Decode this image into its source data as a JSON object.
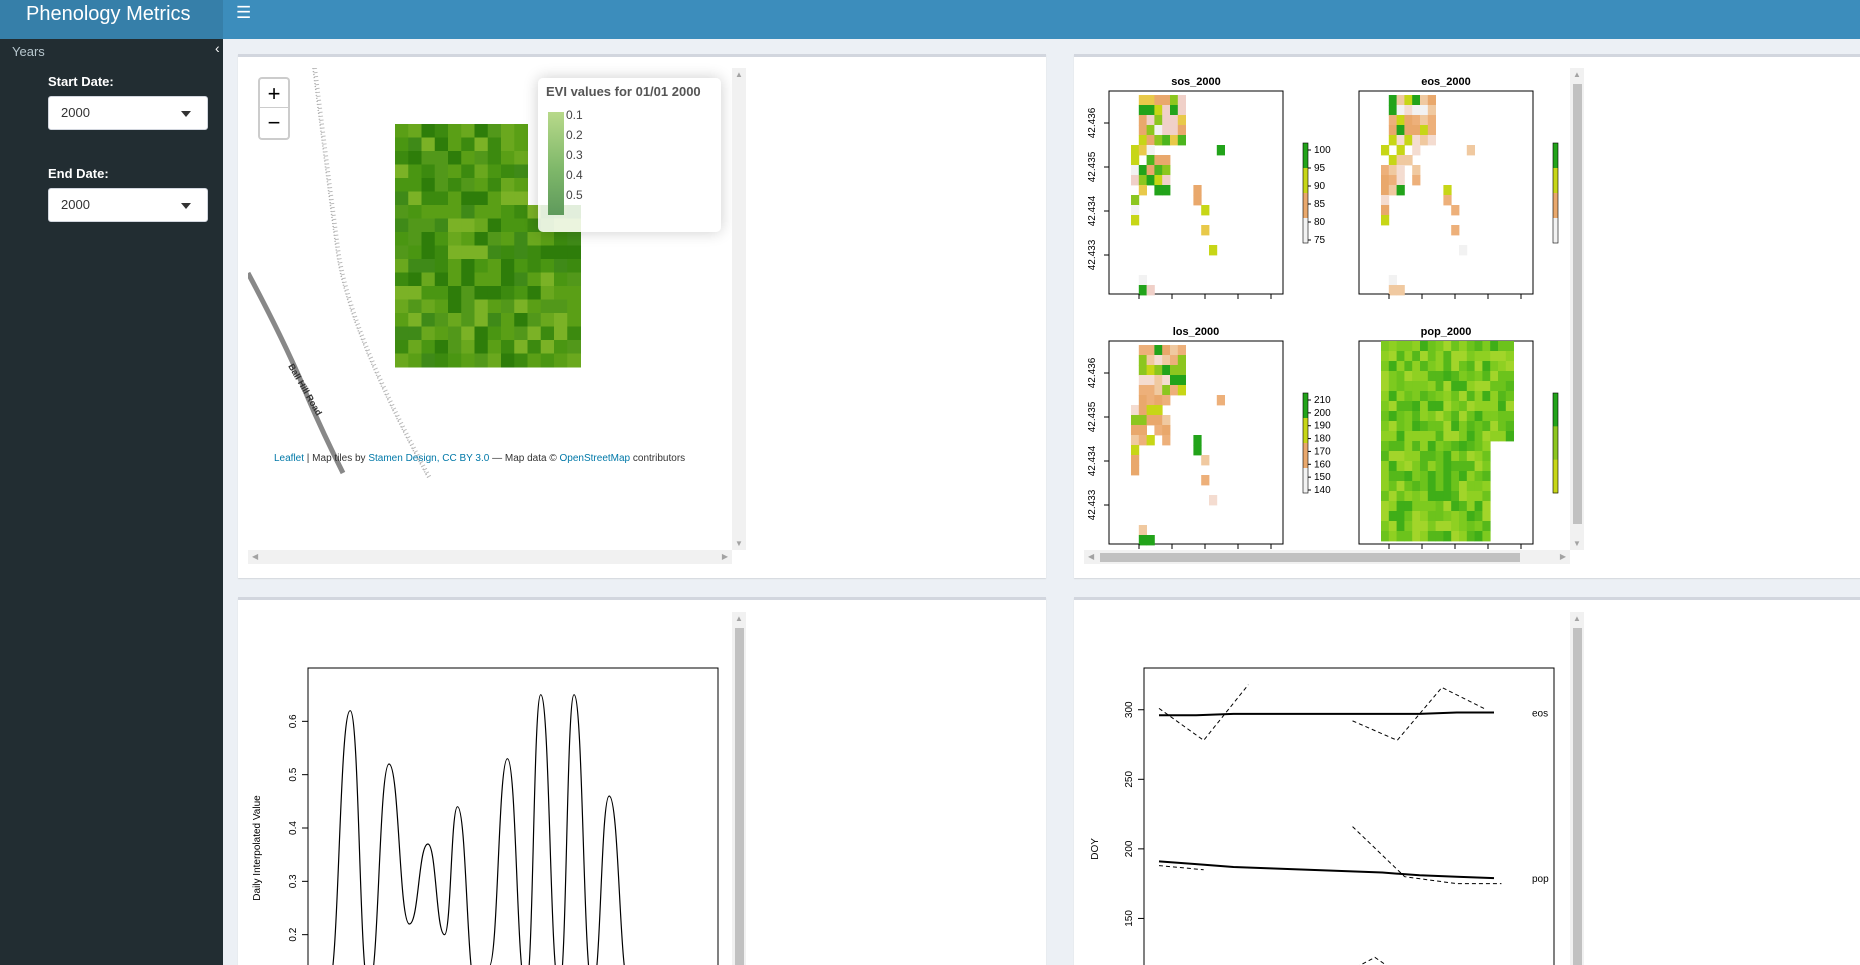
{
  "header": {
    "title": "Phenology Metrics",
    "menu_icon": "hamburger-icon"
  },
  "sidebar": {
    "section_title": "Years",
    "start_label": "Start Date:",
    "start_value": "2000",
    "end_label": "End Date:",
    "end_value": "2000"
  },
  "map": {
    "zoom_in": "+",
    "zoom_out": "−",
    "legend_title": "EVI values for 01/01 2000",
    "legend_items": [
      "0.1",
      "0.2",
      "0.3",
      "0.4",
      "0.5"
    ],
    "road_label": "Ball Hill Road",
    "attribution": {
      "leaflet": "Leaflet",
      "sep1": " | Map tiles by ",
      "stamen": "Stamen Design, CC BY 3.0",
      "sep2": " — Map data © ",
      "osm": "OpenStreetMap",
      "sep3": " contributors"
    }
  },
  "rasters": {
    "panels": [
      {
        "title": "sos_2000",
        "legend": [
          "100",
          "95",
          "90",
          "85",
          "80",
          "75"
        ]
      },
      {
        "title": "eos_2000",
        "legend": []
      },
      {
        "title": "los_2000",
        "legend": [
          "210",
          "200",
          "190",
          "180",
          "170",
          "160",
          "150",
          "140"
        ]
      },
      {
        "title": "pop_2000",
        "legend": []
      }
    ],
    "lat_ticks": [
      "42.436",
      "42.435",
      "42.434",
      "42.433"
    ]
  },
  "chart_data": [
    {
      "type": "line",
      "title": "",
      "xlabel": "",
      "ylabel": "Daily Interpolated Value",
      "yticks": [
        "0.2",
        "0.3",
        "0.4",
        "0.5",
        "0.6"
      ],
      "ylim": [
        0.1,
        0.7
      ],
      "x": [
        0,
        12,
        22,
        33,
        44,
        54,
        63,
        70,
        80,
        87,
        97,
        107,
        115,
        125,
        133,
        143,
        152,
        163,
        173,
        182,
        192,
        200
      ],
      "values": [
        0.1,
        0.62,
        0.1,
        0.52,
        0.22,
        0.37,
        0.2,
        0.44,
        0.1,
        0.14,
        0.53,
        0.1,
        0.65,
        0.1,
        0.65,
        0.1,
        0.46,
        0.1,
        0.1,
        0.1,
        0.1,
        0.1
      ]
    },
    {
      "type": "line",
      "title": "",
      "ylabel": "DOY",
      "yticks": [
        "150",
        "200",
        "250",
        "300"
      ],
      "ylim": [
        100,
        330
      ],
      "series": [
        {
          "name": "eos",
          "x": [
            0,
            10,
            20,
            30,
            40,
            50,
            60,
            70,
            80,
            90
          ],
          "values": [
            296,
            296,
            297,
            297,
            297,
            297,
            297,
            297,
            298,
            298
          ]
        },
        {
          "name": "pop",
          "x": [
            0,
            10,
            20,
            30,
            40,
            50,
            60,
            70,
            80,
            90
          ],
          "values": [
            191,
            189,
            187,
            186,
            185,
            184,
            183,
            181,
            180,
            179
          ]
        }
      ],
      "series_labels": [
        "eos",
        "pop"
      ]
    }
  ]
}
